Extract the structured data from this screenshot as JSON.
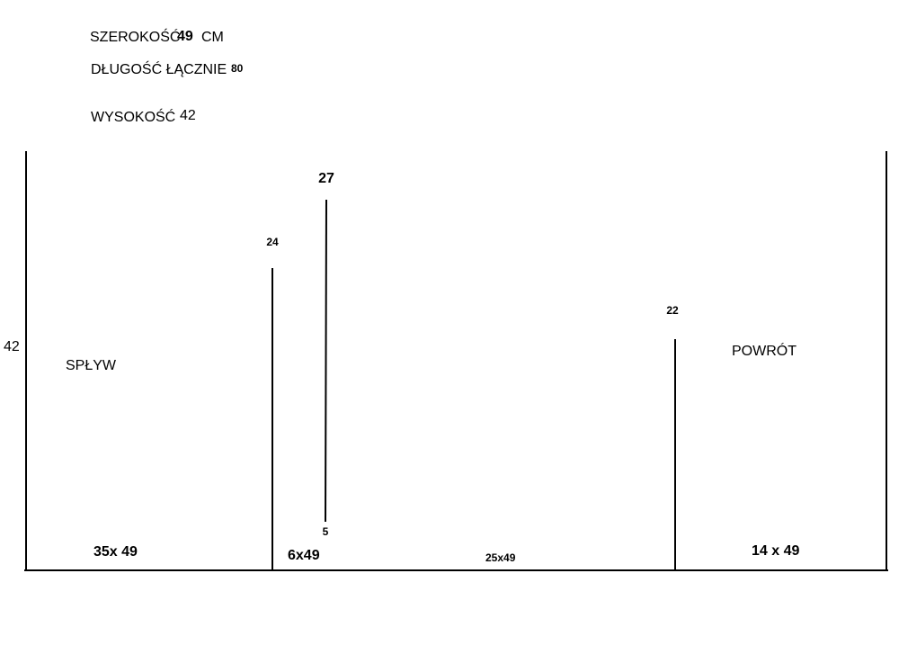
{
  "header": {
    "width_label": "SZEROKOŚĆ",
    "width_value": "49",
    "width_unit": "CM",
    "length_label": "DŁUGOŚĆ ŁĄCZNIE",
    "length_value": "80",
    "height_label": "WYSOKOŚĆ",
    "height_value": "42"
  },
  "diagram": {
    "left_height": "42",
    "left_section": "SPŁYW",
    "right_section": "POWRÓT",
    "walls": [
      "24",
      "27",
      "5",
      "22"
    ],
    "bottoms": [
      "35x 49",
      "6x49",
      "25x49",
      "14 x 49"
    ]
  }
}
